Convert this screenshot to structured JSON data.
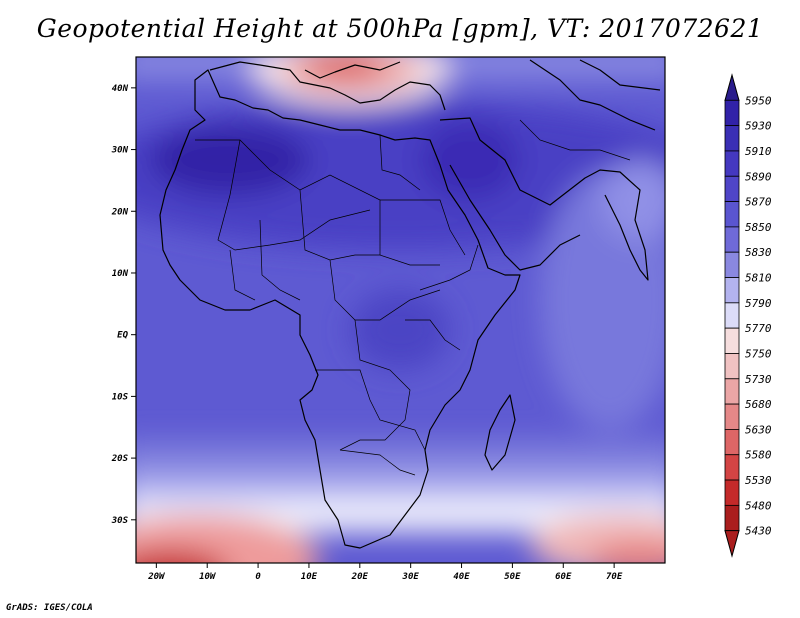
{
  "title": "Geopotential Height at 500hPa [gpm], VT: 2017072621",
  "credit": "GrADS: IGES/COLA",
  "map": {
    "region": "Africa",
    "lon_range": [
      -24,
      80
    ],
    "lat_range": [
      -37,
      45
    ],
    "lat_ticks": [
      {
        "value": 40,
        "label": "40N"
      },
      {
        "value": 30,
        "label": "30N"
      },
      {
        "value": 20,
        "label": "20N"
      },
      {
        "value": 10,
        "label": "10N"
      },
      {
        "value": 0,
        "label": "EQ"
      },
      {
        "value": -10,
        "label": "10S"
      },
      {
        "value": -20,
        "label": "20S"
      },
      {
        "value": -30,
        "label": "30S"
      }
    ],
    "lon_ticks": [
      {
        "value": -20,
        "label": "20W"
      },
      {
        "value": -10,
        "label": "10W"
      },
      {
        "value": 0,
        "label": "0"
      },
      {
        "value": 10,
        "label": "10E"
      },
      {
        "value": 20,
        "label": "20E"
      },
      {
        "value": 30,
        "label": "30E"
      },
      {
        "value": 40,
        "label": "40E"
      },
      {
        "value": 50,
        "label": "50E"
      },
      {
        "value": 60,
        "label": "60E"
      },
      {
        "value": 70,
        "label": "70E"
      }
    ]
  },
  "colorbar": {
    "levels": [
      "5950",
      "5930",
      "5910",
      "5890",
      "5870",
      "5850",
      "5830",
      "5810",
      "5790",
      "5770",
      "5750",
      "5730",
      "5680",
      "5630",
      "5580",
      "5530",
      "5480",
      "5430"
    ],
    "colors": [
      "#2a1c8c",
      "#3122a8",
      "#3a2fb5",
      "#4438c0",
      "#4f45c8",
      "#5a55d0",
      "#6f6ad8",
      "#8a88e0",
      "#b3b3ef",
      "#dcdcf8",
      "#f6dede",
      "#f0c2c2",
      "#eba6a6",
      "#e58888",
      "#dd6666",
      "#d34444",
      "#c42a2a",
      "#aa1e1e"
    ]
  }
}
